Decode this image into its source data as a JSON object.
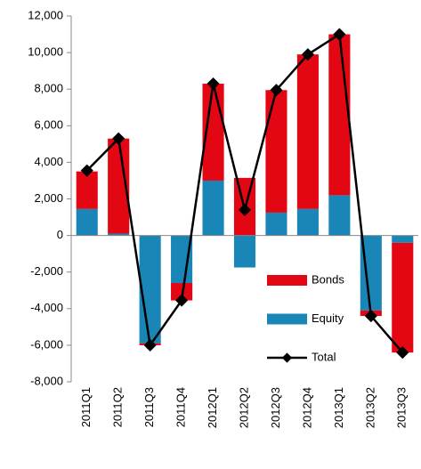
{
  "chart_data": {
    "type": "bar",
    "stacked": true,
    "categories": [
      "2011Q1",
      "2011Q2",
      "2011Q3",
      "2011Q4",
      "2012Q1",
      "2012Q2",
      "2012Q3",
      "2012Q4",
      "2013Q1",
      "2013Q2",
      "2013Q3"
    ],
    "series": [
      {
        "name": "Bonds",
        "color": "#e30613",
        "kind": "bar",
        "values": [
          2050,
          5200,
          -100,
          -950,
          5300,
          3150,
          6700,
          8450,
          8800,
          -300,
          -6000
        ]
      },
      {
        "name": "Equity",
        "color": "#1a86b8",
        "kind": "bar",
        "values": [
          1450,
          100,
          -5900,
          -2600,
          3000,
          -1750,
          1250,
          1450,
          2200,
          -4100,
          -400
        ]
      },
      {
        "name": "Total",
        "color": "#000000",
        "kind": "line",
        "values": [
          3550,
          5300,
          -6000,
          -3550,
          8300,
          1400,
          7950,
          9900,
          11000,
          -4400,
          -6400
        ]
      }
    ],
    "ylim": [
      -8000,
      12000
    ],
    "yticks": [
      {
        "value": -8000,
        "label": "-8,000"
      },
      {
        "value": -6000,
        "label": "-6,000"
      },
      {
        "value": -4000,
        "label": "-4,000"
      },
      {
        "value": -2000,
        "label": "-2,000"
      },
      0,
      {
        "value": 2000,
        "label": "2,000"
      },
      {
        "value": 4000,
        "label": "4,000"
      },
      {
        "value": 6000,
        "label": "6,000"
      },
      {
        "value": 8000,
        "label": "8,000"
      },
      {
        "value": 10000,
        "label": "10,000"
      },
      {
        "value": 12000,
        "label": "12,000"
      }
    ],
    "grid": false,
    "legend": "lower right"
  }
}
